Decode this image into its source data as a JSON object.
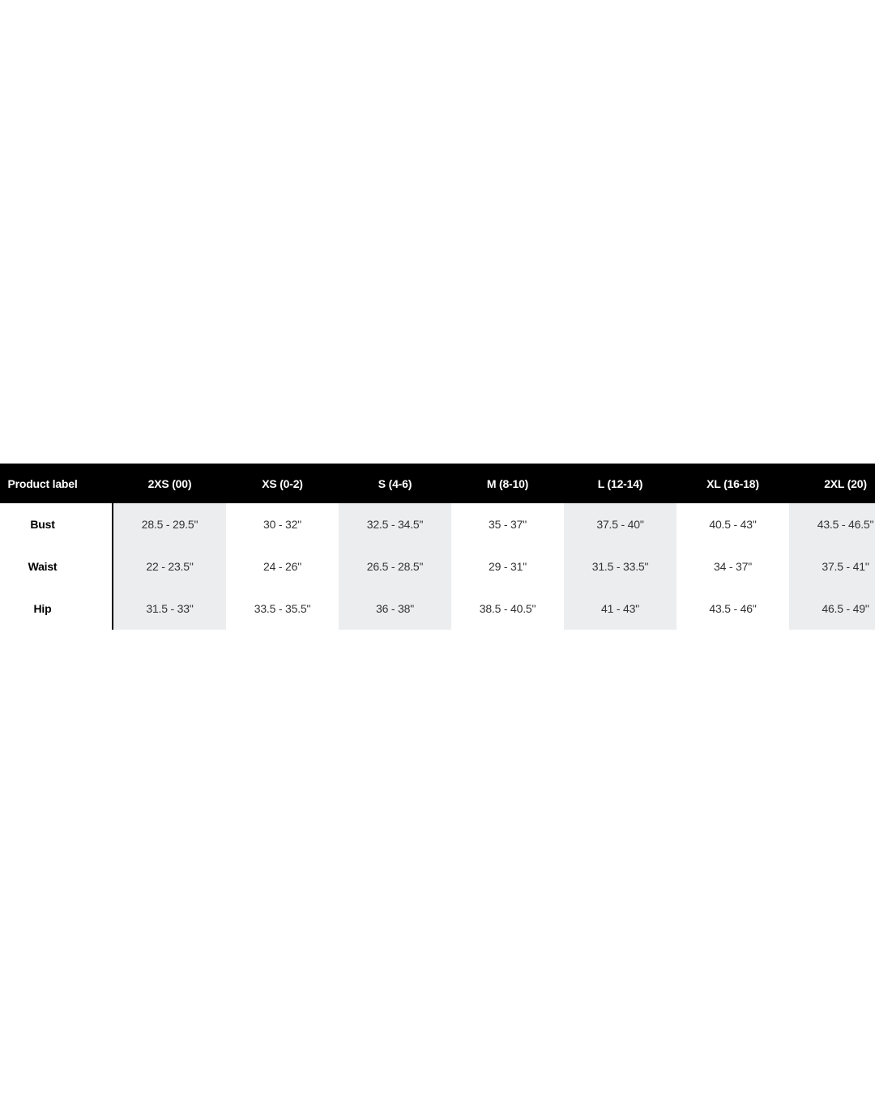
{
  "size_chart": {
    "header": {
      "label_column": "Product label",
      "columns": [
        "2XS (00)",
        "XS (0-2)",
        "S (4-6)",
        "M (8-10)",
        "L (12-14)",
        "XL (16-18)",
        "2XL (20)"
      ]
    },
    "rows": [
      {
        "label": "Bust",
        "values": [
          "28.5 - 29.5\"",
          "30 - 32\"",
          "32.5 - 34.5\"",
          "35 - 37\"",
          "37.5 - 40\"",
          "40.5 - 43\"",
          "43.5 - 46.5\""
        ]
      },
      {
        "label": "Waist",
        "values": [
          "22 - 23.5\"",
          "24 - 26\"",
          "26.5 - 28.5\"",
          "29 - 31\"",
          "31.5 - 33.5\"",
          "34 - 37\"",
          "37.5 - 41\""
        ]
      },
      {
        "label": "Hip",
        "values": [
          "31.5 - 33\"",
          "33.5 - 35.5\"",
          "36 - 38\"",
          "38.5 - 40.5\"",
          "41 - 43\"",
          "43.5 - 46\"",
          "46.5 - 49\""
        ]
      }
    ],
    "colors": {
      "header_bg": "#000000",
      "header_text": "#ffffff",
      "shaded_cell": "#ebedee",
      "value_text": "#333333",
      "label_text": "#000000",
      "divider": "#000000"
    }
  }
}
